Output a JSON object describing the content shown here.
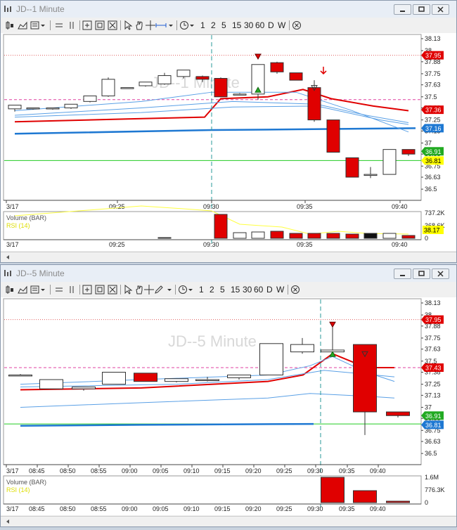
{
  "windows": [
    {
      "title": "JD--1 Minute",
      "watermark": "JD--1 Minute",
      "toolbar": {
        "periods": [
          "1",
          "2",
          "5",
          "15",
          "30",
          "60",
          "D",
          "W"
        ]
      },
      "price_axis": [
        "38.13",
        "38",
        "37.88",
        "37.75",
        "37.63",
        "37.5",
        "37.38",
        "37.25",
        "37.13",
        "37",
        "36.88",
        "36.75",
        "36.63",
        "36.5"
      ],
      "price_badges": [
        {
          "text": "37.95",
          "color": "#e00000"
        },
        {
          "text": "37.36",
          "color": "#e00000"
        },
        {
          "text": "37.16",
          "color": "#1e78d2"
        },
        {
          "text": "36.91",
          "color": "#22aa22"
        },
        {
          "text": "36.81",
          "color": "#ffff00"
        }
      ],
      "time_axis": [
        "3/17",
        "09:25",
        "09:30",
        "09:35",
        "09:40"
      ],
      "volume_label": "Volume (BAR)",
      "rsi_label": "RSI (14)",
      "volume_axis": [
        "737.2K",
        "368.6K",
        "0"
      ],
      "rsi_badge": "38.17"
    },
    {
      "title": "JD--5 Minute",
      "watermark": "JD--5 Minute",
      "toolbar": {
        "periods": [
          "1",
          "2",
          "5",
          "15",
          "30",
          "60",
          "D",
          "W"
        ]
      },
      "price_axis": [
        "38.13",
        "38",
        "37.88",
        "37.75",
        "37.63",
        "37.5",
        "37.38",
        "37.25",
        "37.13",
        "37",
        "36.88",
        "36.75",
        "36.63",
        "36.5"
      ],
      "price_badges": [
        {
          "text": "37.95",
          "color": "#e00000"
        },
        {
          "text": "37.43",
          "color": "#e00000"
        },
        {
          "text": "36.91",
          "color": "#22aa22"
        },
        {
          "text": "36.81",
          "color": "#1e78d2"
        }
      ],
      "time_axis": [
        "3/17",
        "08:45",
        "08:50",
        "08:55",
        "09:00",
        "09:05",
        "09:10",
        "09:15",
        "09:20",
        "09:25",
        "09:30",
        "09:35",
        "09:40"
      ],
      "volume_label": "Volume (BAR)",
      "rsi_label": "RSI (14)",
      "volume_axis": [
        "1.6M",
        "776.3K",
        "0"
      ]
    }
  ],
  "colors": {
    "up_candle": "#ffffff",
    "down_candle": "#e00000",
    "ma_red": "#e00000",
    "ma_blue": "#1e78d2",
    "ma_light_blue": "#5aa0e6",
    "support_green": "#22cc22",
    "resistance_dotted": "#e06060",
    "pink_dashed": "#e040a0",
    "cursor_line": "#2a9a9a",
    "rsi_line": "#ffff40"
  }
}
